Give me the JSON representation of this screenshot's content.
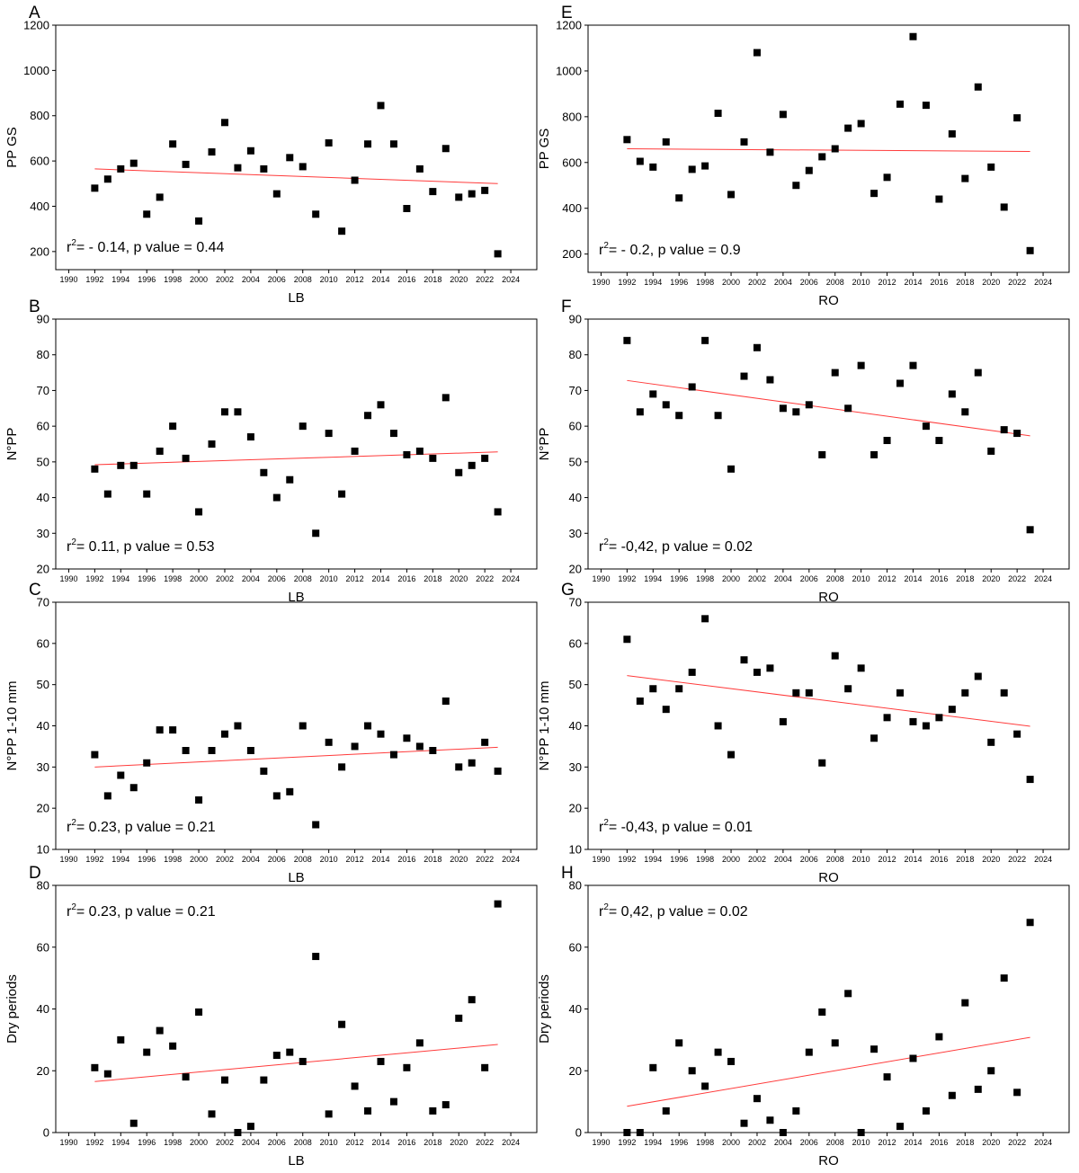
{
  "chart_data": [
    {
      "panel": "A",
      "type": "scatter",
      "xlabel": "LB",
      "ylabel": "PP GS",
      "xlim": [
        1989,
        2026
      ],
      "ylim": [
        120,
        1200
      ],
      "xticks": [
        1990,
        1992,
        1994,
        1996,
        1998,
        2000,
        2002,
        2004,
        2006,
        2008,
        2010,
        2012,
        2014,
        2016,
        2018,
        2020,
        2022,
        2024
      ],
      "yticks": [
        200,
        400,
        600,
        800,
        1000,
        1200
      ],
      "x": [
        1992,
        1993,
        1994,
        1995,
        1996,
        1997,
        1998,
        1999,
        2000,
        2001,
        2002,
        2003,
        2004,
        2005,
        2006,
        2007,
        2008,
        2009,
        2010,
        2011,
        2012,
        2013,
        2014,
        2015,
        2016,
        2017,
        2018,
        2019,
        2020,
        2021,
        2022,
        2023
      ],
      "y": [
        480,
        520,
        565,
        590,
        365,
        440,
        675,
        585,
        335,
        640,
        770,
        570,
        645,
        565,
        455,
        615,
        575,
        365,
        680,
        290,
        515,
        675,
        845,
        675,
        390,
        565,
        465,
        655,
        440,
        455,
        470,
        190
      ],
      "trend": [
        565,
        500
      ],
      "stat_r2": "- 0.14",
      "stat_p": "0.44",
      "stat_pos": "bottom"
    },
    {
      "panel": "B",
      "type": "scatter",
      "xlabel": "LB",
      "ylabel": "N°PP",
      "xlim": [
        1989,
        2026
      ],
      "ylim": [
        20,
        90
      ],
      "xticks": [
        1990,
        1992,
        1994,
        1996,
        1998,
        2000,
        2002,
        2004,
        2006,
        2008,
        2010,
        2012,
        2014,
        2016,
        2018,
        2020,
        2022,
        2024
      ],
      "yticks": [
        20,
        30,
        40,
        50,
        60,
        70,
        80,
        90
      ],
      "x": [
        1992,
        1993,
        1994,
        1995,
        1996,
        1997,
        1998,
        1999,
        2000,
        2001,
        2002,
        2003,
        2004,
        2005,
        2006,
        2007,
        2008,
        2009,
        2010,
        2011,
        2012,
        2013,
        2014,
        2015,
        2016,
        2017,
        2018,
        2019,
        2020,
        2021,
        2022,
        2023
      ],
      "y": [
        48,
        41,
        49,
        49,
        41,
        53,
        60,
        51,
        36,
        55,
        64,
        64,
        57,
        47,
        40,
        45,
        60,
        30,
        58,
        41,
        53,
        63,
        66,
        58,
        52,
        53,
        51,
        68,
        47,
        49,
        51,
        36
      ],
      "trend": [
        49.2,
        52.8
      ],
      "stat_r2": "0.11",
      "stat_p": "0.53",
      "stat_pos": "bottom"
    },
    {
      "panel": "C",
      "type": "scatter",
      "xlabel": "LB",
      "ylabel": "N°PP 1-10 mm",
      "xlim": [
        1989,
        2026
      ],
      "ylim": [
        10,
        70
      ],
      "xticks": [
        1990,
        1992,
        1994,
        1996,
        1998,
        2000,
        2002,
        2004,
        2006,
        2008,
        2010,
        2012,
        2014,
        2016,
        2018,
        2020,
        2022,
        2024
      ],
      "yticks": [
        10,
        20,
        30,
        40,
        50,
        60,
        70
      ],
      "x": [
        1992,
        1993,
        1994,
        1995,
        1996,
        1997,
        1998,
        1999,
        2000,
        2001,
        2002,
        2003,
        2004,
        2005,
        2006,
        2007,
        2008,
        2009,
        2010,
        2011,
        2012,
        2013,
        2014,
        2015,
        2016,
        2017,
        2018,
        2019,
        2020,
        2021,
        2022,
        2023
      ],
      "y": [
        33,
        23,
        28,
        25,
        31,
        39,
        39,
        34,
        22,
        34,
        38,
        40,
        34,
        29,
        23,
        24,
        40,
        16,
        36,
        30,
        35,
        40,
        38,
        33,
        37,
        35,
        34,
        46,
        30,
        31,
        36,
        29
      ],
      "trend": [
        30,
        34.8
      ],
      "stat_r2": "0.23",
      "stat_p": "0.21",
      "stat_pos": "bottom"
    },
    {
      "panel": "D",
      "type": "scatter",
      "xlabel": "LB",
      "ylabel": "Dry periods",
      "xlim": [
        1989,
        2026
      ],
      "ylim": [
        0,
        80
      ],
      "xticks": [
        1990,
        1992,
        1994,
        1996,
        1998,
        2000,
        2002,
        2004,
        2006,
        2008,
        2010,
        2012,
        2014,
        2016,
        2018,
        2020,
        2022,
        2024
      ],
      "yticks": [
        0,
        20,
        40,
        60,
        80
      ],
      "x": [
        1992,
        1993,
        1994,
        1995,
        1996,
        1997,
        1998,
        1999,
        2000,
        2001,
        2002,
        2003,
        2004,
        2005,
        2006,
        2007,
        2008,
        2009,
        2010,
        2011,
        2012,
        2013,
        2014,
        2015,
        2016,
        2017,
        2018,
        2019,
        2020,
        2021,
        2022,
        2023
      ],
      "y": [
        21,
        19,
        30,
        3,
        26,
        33,
        28,
        18,
        39,
        6,
        17,
        0,
        2,
        17,
        25,
        26,
        23,
        57,
        6,
        35,
        15,
        7,
        23,
        10,
        21,
        29,
        7,
        9,
        37,
        43,
        21,
        74
      ],
      "trend": [
        16.5,
        28.5
      ],
      "stat_r2": "0.23",
      "stat_p": "0.21",
      "stat_pos": "top"
    },
    {
      "panel": "E",
      "type": "scatter",
      "xlabel": "RO",
      "ylabel": "PP GS",
      "xlim": [
        1989,
        2026
      ],
      "ylim": [
        120,
        1200
      ],
      "xticks": [
        1990,
        1992,
        1994,
        1996,
        1998,
        2000,
        2002,
        2004,
        2006,
        2008,
        2010,
        2012,
        2014,
        2016,
        2018,
        2020,
        2022,
        2024
      ],
      "yticks": [
        200,
        400,
        600,
        800,
        1000,
        1200
      ],
      "x": [
        1992,
        1993,
        1994,
        1995,
        1996,
        1997,
        1998,
        1999,
        2000,
        2001,
        2002,
        2003,
        2004,
        2005,
        2006,
        2007,
        2008,
        2009,
        2010,
        2011,
        2012,
        2013,
        2014,
        2015,
        2016,
        2017,
        2018,
        2019,
        2020,
        2021,
        2022,
        2023
      ],
      "y": [
        700,
        605,
        580,
        690,
        445,
        570,
        585,
        815,
        460,
        690,
        1080,
        645,
        810,
        500,
        565,
        625,
        660,
        750,
        770,
        465,
        535,
        855,
        1150,
        850,
        440,
        725,
        530,
        930,
        580,
        405,
        795,
        215
      ],
      "trend": [
        660,
        648
      ],
      "stat_r2": "- 0.2",
      "stat_p": "0.9",
      "stat_pos": "bottom"
    },
    {
      "panel": "F",
      "type": "scatter",
      "xlabel": "RO",
      "ylabel": "N°PP",
      "xlim": [
        1989,
        2026
      ],
      "ylim": [
        20,
        90
      ],
      "xticks": [
        1990,
        1992,
        1994,
        1996,
        1998,
        2000,
        2002,
        2004,
        2006,
        2008,
        2010,
        2012,
        2014,
        2016,
        2018,
        2020,
        2022,
        2024
      ],
      "yticks": [
        20,
        30,
        40,
        50,
        60,
        70,
        80,
        90
      ],
      "x": [
        1992,
        1993,
        1994,
        1995,
        1996,
        1997,
        1998,
        1999,
        2000,
        2001,
        2002,
        2003,
        2004,
        2005,
        2006,
        2007,
        2008,
        2009,
        2010,
        2011,
        2012,
        2013,
        2014,
        2015,
        2016,
        2017,
        2018,
        2019,
        2020,
        2021,
        2022,
        2023
      ],
      "y": [
        84,
        64,
        69,
        66,
        63,
        71,
        84,
        63,
        48,
        74,
        82,
        73,
        65,
        64,
        66,
        52,
        75,
        65,
        77,
        52,
        56,
        72,
        77,
        60,
        56,
        69,
        64,
        75,
        53,
        59,
        58,
        31
      ],
      "trend": [
        72.8,
        57.3
      ],
      "stat_r2": "-0,42",
      "stat_p": "0.02",
      "stat_pos": "bottom"
    },
    {
      "panel": "G",
      "type": "scatter",
      "xlabel": "RO",
      "ylabel": "N°PP 1-10 mm",
      "xlim": [
        1989,
        2026
      ],
      "ylim": [
        10,
        70
      ],
      "xticks": [
        1990,
        1992,
        1994,
        1996,
        1998,
        2000,
        2002,
        2004,
        2006,
        2008,
        2010,
        2012,
        2014,
        2016,
        2018,
        2020,
        2022,
        2024
      ],
      "yticks": [
        10,
        20,
        30,
        40,
        50,
        60,
        70
      ],
      "x": [
        1992,
        1993,
        1994,
        1995,
        1996,
        1997,
        1998,
        1999,
        2000,
        2001,
        2002,
        2003,
        2004,
        2005,
        2006,
        2007,
        2008,
        2009,
        2010,
        2011,
        2012,
        2013,
        2014,
        2015,
        2016,
        2017,
        2018,
        2019,
        2020,
        2021,
        2022,
        2023
      ],
      "y": [
        61,
        46,
        49,
        44,
        49,
        53,
        66,
        40,
        33,
        56,
        53,
        54,
        41,
        48,
        48,
        31,
        57,
        49,
        54,
        37,
        42,
        48,
        41,
        40,
        42,
        44,
        48,
        52,
        36,
        48,
        38,
        27
      ],
      "trend": [
        52.2,
        39.9
      ],
      "stat_r2": "-0,43",
      "stat_p": "0.01",
      "stat_pos": "bottom"
    },
    {
      "panel": "H",
      "type": "scatter",
      "xlabel": "RO",
      "ylabel": "Dry periods",
      "xlim": [
        1989,
        2026
      ],
      "ylim": [
        0,
        80
      ],
      "xticks": [
        1990,
        1992,
        1994,
        1996,
        1998,
        2000,
        2002,
        2004,
        2006,
        2008,
        2010,
        2012,
        2014,
        2016,
        2018,
        2020,
        2022,
        2024
      ],
      "yticks": [
        0,
        20,
        40,
        60,
        80
      ],
      "x": [
        1992,
        1993,
        1994,
        1995,
        1996,
        1997,
        1998,
        1999,
        2000,
        2001,
        2002,
        2003,
        2004,
        2005,
        2006,
        2007,
        2008,
        2009,
        2010,
        2011,
        2012,
        2013,
        2014,
        2015,
        2016,
        2017,
        2018,
        2019,
        2020,
        2021,
        2022,
        2023
      ],
      "y": [
        0,
        0,
        21,
        7,
        29,
        20,
        15,
        26,
        23,
        3,
        11,
        4,
        0,
        7,
        26,
        39,
        29,
        45,
        0,
        27,
        18,
        2,
        24,
        7,
        31,
        12,
        42,
        14,
        20,
        50,
        13,
        68
      ],
      "trend": [
        8.5,
        30.8
      ],
      "stat_r2": "0,42",
      "stat_p": "0.02",
      "stat_pos": "top"
    }
  ],
  "colors": {
    "points": "#000000",
    "trend": "#ff3b3b",
    "axes": "#000000"
  },
  "stat_text": {
    "r_symbol": "r",
    "exponent": "2",
    "eq": "= ",
    "mid": ", p value = "
  }
}
